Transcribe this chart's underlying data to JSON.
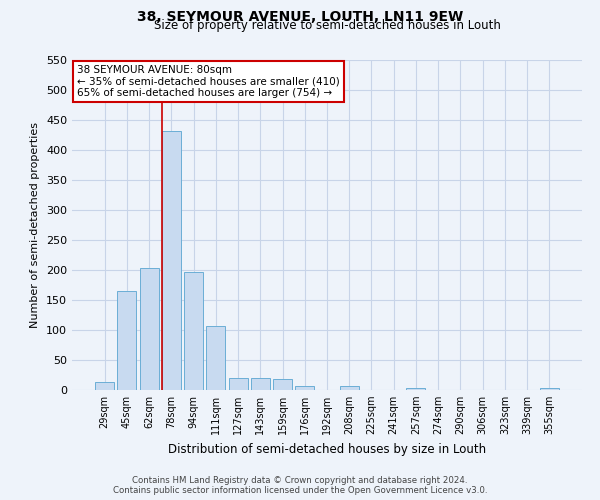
{
  "title": "38, SEYMOUR AVENUE, LOUTH, LN11 9EW",
  "subtitle": "Size of property relative to semi-detached houses in Louth",
  "xlabel": "Distribution of semi-detached houses by size in Louth",
  "ylabel": "Number of semi-detached properties",
  "bar_labels": [
    "29sqm",
    "45sqm",
    "62sqm",
    "78sqm",
    "94sqm",
    "111sqm",
    "127sqm",
    "143sqm",
    "159sqm",
    "176sqm",
    "192sqm",
    "208sqm",
    "225sqm",
    "241sqm",
    "257sqm",
    "274sqm",
    "290sqm",
    "306sqm",
    "323sqm",
    "339sqm",
    "355sqm"
  ],
  "bar_values": [
    14,
    165,
    204,
    432,
    197,
    107,
    20,
    20,
    18,
    7,
    0,
    6,
    0,
    0,
    3,
    0,
    0,
    0,
    0,
    0,
    4
  ],
  "bar_color": "#c8daf0",
  "bar_edge_color": "#6baed6",
  "ylim": [
    0,
    550
  ],
  "yticks": [
    0,
    50,
    100,
    150,
    200,
    250,
    300,
    350,
    400,
    450,
    500,
    550
  ],
  "annotation_title": "38 SEYMOUR AVENUE: 80sqm",
  "annotation_line1": "← 35% of semi-detached houses are smaller (410)",
  "annotation_line2": "65% of semi-detached houses are larger (754) →",
  "annotation_box_color": "#ffffff",
  "annotation_box_edge": "#cc0000",
  "property_line_color": "#cc0000",
  "footer_line1": "Contains HM Land Registry data © Crown copyright and database right 2024.",
  "footer_line2": "Contains public sector information licensed under the Open Government Licence v3.0.",
  "grid_color": "#c8d4e8",
  "background_color": "#eef3fa"
}
